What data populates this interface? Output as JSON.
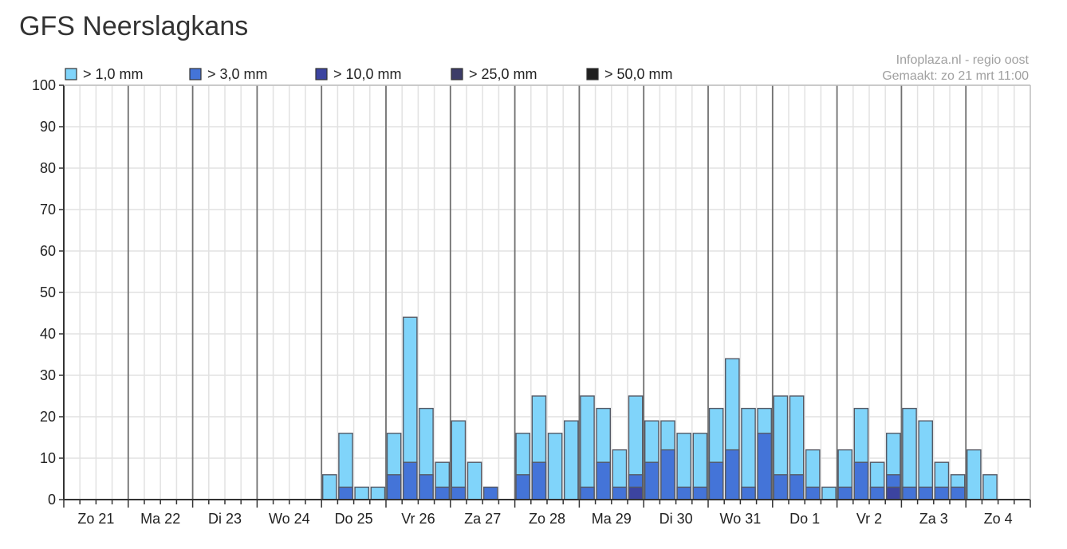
{
  "page": {
    "title": "GFS Neerslagkans"
  },
  "chart_data": {
    "type": "bar",
    "stacked": true,
    "title": "GFS Neerslagkans",
    "source": "Infoplaza.nl - regio oost",
    "created": "Gemaakt: zo 21 mrt 11:00",
    "ylim": [
      0,
      100
    ],
    "yticks": [
      "0",
      "10",
      "20",
      "30",
      "40",
      "50",
      "60",
      "70",
      "80",
      "90",
      "100"
    ],
    "grid": true,
    "legend_position": "top-left",
    "legend": [
      {
        "label": "> 1,0 mm",
        "color": "#80d4fa"
      },
      {
        "label": "> 3,0 mm",
        "color": "#4474d8"
      },
      {
        "label": "> 10,0 mm",
        "color": "#3c44a0"
      },
      {
        "label": "> 25,0 mm",
        "color": "#3c3c68"
      },
      {
        "label": "> 50,0 mm",
        "color": "#202020"
      }
    ],
    "days": [
      "Zo 21",
      "Ma 22",
      "Di 23",
      "Wo 24",
      "Do 25",
      "Vr 26",
      "Za 27",
      "Zo 28",
      "Ma 29",
      "Di 30",
      "Wo 31",
      "Do 1",
      "Vr 2",
      "Za 3",
      "Zo 4"
    ],
    "slots_per_day": 4,
    "series": [
      {
        "name": "> 1,0 mm",
        "color": "#80d4fa",
        "values": [
          0,
          0,
          0,
          0,
          0,
          0,
          0,
          0,
          0,
          0,
          0,
          0,
          0,
          0,
          0,
          0,
          6,
          16,
          3,
          3,
          16,
          44,
          22,
          9,
          19,
          9,
          0,
          0,
          16,
          25,
          16,
          19,
          25,
          22,
          12,
          25,
          19,
          19,
          16,
          16,
          22,
          34,
          22,
          22,
          25,
          25,
          12,
          3,
          12,
          22,
          9,
          16,
          22,
          19,
          9,
          6,
          12,
          6
        ]
      },
      {
        "name": "> 3,0 mm",
        "color": "#4474d8",
        "values": [
          0,
          0,
          0,
          0,
          0,
          0,
          0,
          0,
          0,
          0,
          0,
          0,
          0,
          0,
          0,
          0,
          0,
          3,
          0,
          0,
          6,
          9,
          6,
          3,
          3,
          0,
          3,
          0,
          6,
          9,
          0,
          0,
          3,
          9,
          3,
          6,
          9,
          12,
          3,
          3,
          9,
          12,
          3,
          16,
          6,
          6,
          3,
          0,
          3,
          9,
          3,
          6,
          3,
          3,
          3,
          3,
          0,
          0
        ]
      },
      {
        "name": "> 10,0 mm",
        "color": "#3c44a0",
        "values": [
          0,
          0,
          0,
          0,
          0,
          0,
          0,
          0,
          0,
          0,
          0,
          0,
          0,
          0,
          0,
          0,
          0,
          0,
          0,
          0,
          0,
          0,
          0,
          0,
          0,
          0,
          0,
          0,
          0,
          0,
          0,
          0,
          0,
          0,
          0,
          3,
          0,
          0,
          0,
          0,
          0,
          0,
          0,
          0,
          0,
          0,
          0,
          0,
          0,
          0,
          0,
          3,
          0,
          0,
          0,
          0,
          0,
          0
        ]
      },
      {
        "name": "> 25,0 mm",
        "color": "#3c3c68",
        "values": [
          0,
          0,
          0,
          0,
          0,
          0,
          0,
          0,
          0,
          0,
          0,
          0,
          0,
          0,
          0,
          0,
          0,
          0,
          0,
          0,
          0,
          0,
          0,
          0,
          0,
          0,
          0,
          0,
          0,
          0,
          0,
          0,
          0,
          0,
          0,
          0,
          0,
          0,
          0,
          0,
          0,
          0,
          0,
          0,
          0,
          0,
          0,
          0,
          0,
          0,
          0,
          0,
          0,
          0,
          0,
          0,
          0,
          0
        ]
      },
      {
        "name": "> 50,0 mm",
        "color": "#202020",
        "values": [
          0,
          0,
          0,
          0,
          0,
          0,
          0,
          0,
          0,
          0,
          0,
          0,
          0,
          0,
          0,
          0,
          0,
          0,
          0,
          0,
          0,
          0,
          0,
          0,
          0,
          0,
          0,
          0,
          0,
          0,
          0,
          0,
          0,
          0,
          0,
          0,
          0,
          0,
          0,
          0,
          0,
          0,
          0,
          0,
          0,
          0,
          0,
          0,
          0,
          0,
          0,
          0,
          0,
          0,
          0,
          0,
          0,
          0
        ]
      }
    ]
  }
}
